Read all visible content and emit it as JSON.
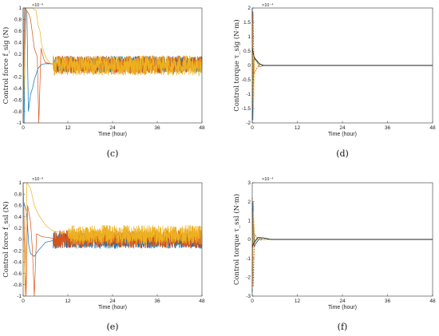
{
  "chart_data": [
    {
      "id": "c",
      "type": "line",
      "caption": "(c)",
      "ylabel": "Control force f_sig (N)",
      "xlabel": "Time (hour)",
      "exponent": "×10⁻³",
      "xlim": [
        0,
        48
      ],
      "ylim": [
        -1,
        1
      ],
      "xticks": [
        0,
        12,
        24,
        36,
        48
      ],
      "xtick_labels": [
        "0",
        "12",
        "24",
        "36",
        "48"
      ],
      "yticks": [
        -1,
        -0.8,
        -0.6,
        -0.4,
        -0.2,
        0,
        0.2,
        0.4,
        0.6,
        0.8,
        1
      ],
      "ytick_labels": [
        "-1",
        "-0.8",
        "-0.6",
        "-0.4",
        "-0.2",
        "0",
        "0.2",
        "0.4",
        "0.6",
        "0.8",
        "1"
      ],
      "series": [
        {
          "color": "#0072BD",
          "noise": 0.09,
          "mean": 0.02,
          "points": [
            [
              0,
              1
            ],
            [
              0.25,
              -1
            ],
            [
              0.6,
              1
            ],
            [
              1,
              0.95
            ],
            [
              1.4,
              -0.8
            ],
            [
              2,
              -0.5
            ],
            [
              2.5,
              -0.4
            ],
            [
              3,
              -0.25
            ],
            [
              4,
              -0.05
            ],
            [
              5,
              0.02
            ],
            [
              6,
              0.03
            ],
            [
              8,
              0.03
            ]
          ]
        },
        {
          "color": "#D95319",
          "noise": 0.1,
          "mean": 0.01,
          "points": [
            [
              0,
              -1
            ],
            [
              0.4,
              1
            ],
            [
              1.5,
              0.9
            ],
            [
              2,
              0.8
            ],
            [
              3,
              0.3
            ],
            [
              3.8,
              0.15
            ],
            [
              4.2,
              -1
            ],
            [
              4.8,
              0.3
            ],
            [
              5.5,
              0.12
            ],
            [
              6,
              0.05
            ],
            [
              8,
              0.02
            ]
          ]
        },
        {
          "color": "#EDB120",
          "noise": 0.11,
          "mean": 0.0,
          "points": [
            [
              0,
              -1
            ],
            [
              0.8,
              1
            ],
            [
              2.5,
              1
            ],
            [
              3.5,
              0.95
            ],
            [
              4,
              0.7
            ],
            [
              4.5,
              0.6
            ],
            [
              5,
              0.35
            ],
            [
              6,
              0.15
            ],
            [
              7,
              0.05
            ],
            [
              8,
              0.02
            ]
          ]
        }
      ]
    },
    {
      "id": "d",
      "type": "line",
      "caption": "(d)",
      "ylabel": "Control torque τ_sig (N·m)",
      "xlabel": "Time (hour)",
      "exponent": "×10⁻⁴",
      "xlim": [
        0,
        48
      ],
      "ylim": [
        -2,
        2
      ],
      "xticks": [
        0,
        12,
        24,
        36,
        48
      ],
      "xtick_labels": [
        "0",
        "12",
        "24",
        "36",
        "48"
      ],
      "yticks": [
        -2,
        -1.5,
        -1,
        -0.5,
        0,
        0.5,
        1,
        1.5,
        2
      ],
      "ytick_labels": [
        "-2",
        "-1.5",
        "-1",
        "-0.5",
        "0",
        "0.5",
        "1",
        "1.5",
        "2"
      ],
      "series": [
        {
          "color": "#0072BD",
          "points": [
            [
              0,
              2
            ],
            [
              0.15,
              -2
            ],
            [
              0.4,
              0.25
            ],
            [
              1,
              0.18
            ],
            [
              2,
              -0.05
            ],
            [
              3,
              0.0
            ],
            [
              48,
              0
            ]
          ]
        },
        {
          "color": "#D95319",
          "points": [
            [
              0,
              -2
            ],
            [
              0.2,
              1.9
            ],
            [
              0.5,
              -0.3
            ],
            [
              1,
              -0.15
            ],
            [
              2,
              0.05
            ],
            [
              3,
              0.0
            ],
            [
              48,
              0
            ]
          ]
        },
        {
          "color": "#EDB120",
          "points": [
            [
              0,
              1.5
            ],
            [
              0.3,
              -1.6
            ],
            [
              0.6,
              0.3
            ],
            [
              1.2,
              0.12
            ],
            [
              2,
              -0.04
            ],
            [
              3,
              0.0
            ],
            [
              48,
              0
            ]
          ]
        },
        {
          "color": "#222222",
          "points": [
            [
              0,
              0.6
            ],
            [
              0.5,
              0.28
            ],
            [
              1,
              0.2
            ],
            [
              2,
              0.05
            ],
            [
              3,
              0.0
            ],
            [
              48,
              0
            ]
          ]
        }
      ]
    },
    {
      "id": "e",
      "type": "line",
      "caption": "(e)",
      "ylabel": "Control force f_ssl (N)",
      "xlabel": "Time (hour)",
      "exponent": "×10⁻³",
      "xlim": [
        0,
        48
      ],
      "ylim": [
        -1,
        1
      ],
      "xticks": [
        0,
        12,
        24,
        36,
        48
      ],
      "xtick_labels": [
        "0",
        "12",
        "24",
        "36",
        "48"
      ],
      "yticks": [
        -1,
        -0.8,
        -0.6,
        -0.4,
        -0.2,
        0,
        0.2,
        0.4,
        0.6,
        0.8,
        1
      ],
      "ytick_labels": [
        "-1",
        "-0.8",
        "-0.6",
        "-0.4",
        "-0.2",
        "0",
        "0.2",
        "0.4",
        "0.6",
        "0.8",
        "1"
      ],
      "series": [
        {
          "color": "#0072BD",
          "noise": 0.09,
          "mean": -0.02,
          "points": [
            [
              0,
              0.7
            ],
            [
              1,
              0.45
            ],
            [
              1.5,
              -0.1
            ],
            [
              2,
              -0.25
            ],
            [
              3,
              -0.3
            ],
            [
              4,
              -0.2
            ],
            [
              6,
              -0.05
            ],
            [
              8,
              -0.02
            ]
          ]
        },
        {
          "color": "#D95319",
          "noise": 0.1,
          "mean": 0.01,
          "points": [
            [
              0,
              1
            ],
            [
              0.8,
              -1
            ],
            [
              1.2,
              0.6
            ],
            [
              2,
              0.3
            ],
            [
              2.5,
              -0.2
            ],
            [
              3,
              -1
            ],
            [
              3.6,
              0.1
            ],
            [
              5,
              0.05
            ],
            [
              8,
              0.02
            ]
          ]
        },
        {
          "color": "#EDB120",
          "noise": 0.11,
          "mean": 0.08,
          "points": [
            [
              0,
              1
            ],
            [
              0.5,
              -1
            ],
            [
              1,
              1
            ],
            [
              2,
              0.9
            ],
            [
              3,
              0.6
            ],
            [
              4,
              0.45
            ],
            [
              5,
              0.35
            ],
            [
              6,
              0.25
            ],
            [
              8,
              0.15
            ],
            [
              12,
              0.1
            ]
          ]
        }
      ]
    },
    {
      "id": "f",
      "type": "line",
      "caption": "(f)",
      "ylabel": "Control torque τ_ssl (N·m)",
      "xlabel": "Time (hour)",
      "exponent": "×10⁻⁴",
      "xlim": [
        0,
        48
      ],
      "ylim": [
        -3,
        3
      ],
      "xticks": [
        0,
        12,
        24,
        36,
        48
      ],
      "xtick_labels": [
        "0",
        "12",
        "24",
        "36",
        "48"
      ],
      "yticks": [
        -3,
        -2,
        -1,
        0,
        1,
        2,
        3
      ],
      "ytick_labels": [
        "-3",
        "-2",
        "-1",
        "0",
        "1",
        "2",
        "3"
      ],
      "series": [
        {
          "color": "#0072BD",
          "points": [
            [
              0,
              -2.8
            ],
            [
              0.2,
              2
            ],
            [
              0.5,
              -0.4
            ],
            [
              1,
              -0.2
            ],
            [
              2,
              0.05
            ],
            [
              3,
              0.0
            ],
            [
              48,
              0
            ]
          ]
        },
        {
          "color": "#D95319",
          "points": [
            [
              0,
              2.2
            ],
            [
              0.25,
              -2.5
            ],
            [
              0.6,
              0.3
            ],
            [
              1.2,
              0.1
            ],
            [
              2,
              -0.05
            ],
            [
              3,
              0.0
            ],
            [
              48,
              0
            ]
          ]
        },
        {
          "color": "#EDB120",
          "points": [
            [
              0,
              -2.6
            ],
            [
              0.3,
              1.5
            ],
            [
              0.7,
              -0.2
            ],
            [
              1.5,
              0.05
            ],
            [
              3,
              0.0
            ],
            [
              48,
              0
            ]
          ]
        },
        {
          "color": "#222222",
          "points": [
            [
              0,
              -0.4
            ],
            [
              0.5,
              -0.15
            ],
            [
              1.5,
              0.1
            ],
            [
              3,
              0.08
            ],
            [
              5,
              0.0
            ],
            [
              48,
              0
            ]
          ]
        }
      ]
    }
  ]
}
